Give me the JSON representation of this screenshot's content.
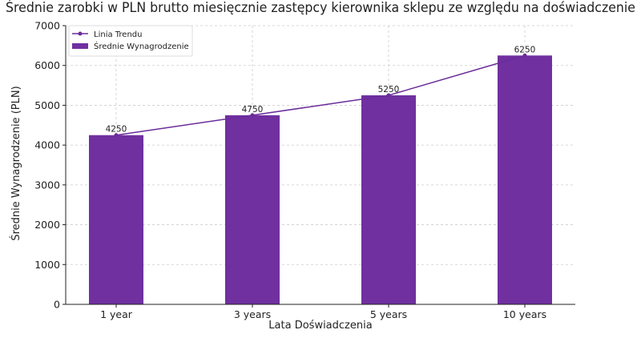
{
  "chart_data": {
    "type": "bar",
    "title": "Średnie zarobki w PLN brutto miesięcznie zastępcy kierownika sklepu ze względu na doświadczenie",
    "xlabel": "Lata Doświadczenia",
    "ylabel": "Średnie Wynagrodzenie (PLN)",
    "categories": [
      "1 year",
      "3 years",
      "5 years",
      "10 years"
    ],
    "series": [
      {
        "name": "Średnie Wynagrodzenie",
        "type": "bar",
        "values": [
          4250,
          4750,
          5250,
          6250
        ],
        "color": "#7030a0"
      },
      {
        "name": "Linia Trendu",
        "type": "line",
        "values": [
          4250,
          4750,
          5250,
          6250
        ],
        "color": "#6a2c9a"
      }
    ],
    "data_labels": [
      "4250",
      "4750",
      "5250",
      "6250"
    ],
    "ylim": [
      0,
      7000
    ],
    "yticks": [
      0,
      1000,
      2000,
      3000,
      4000,
      5000,
      6000,
      7000
    ],
    "grid": true,
    "legend": "top-left"
  }
}
